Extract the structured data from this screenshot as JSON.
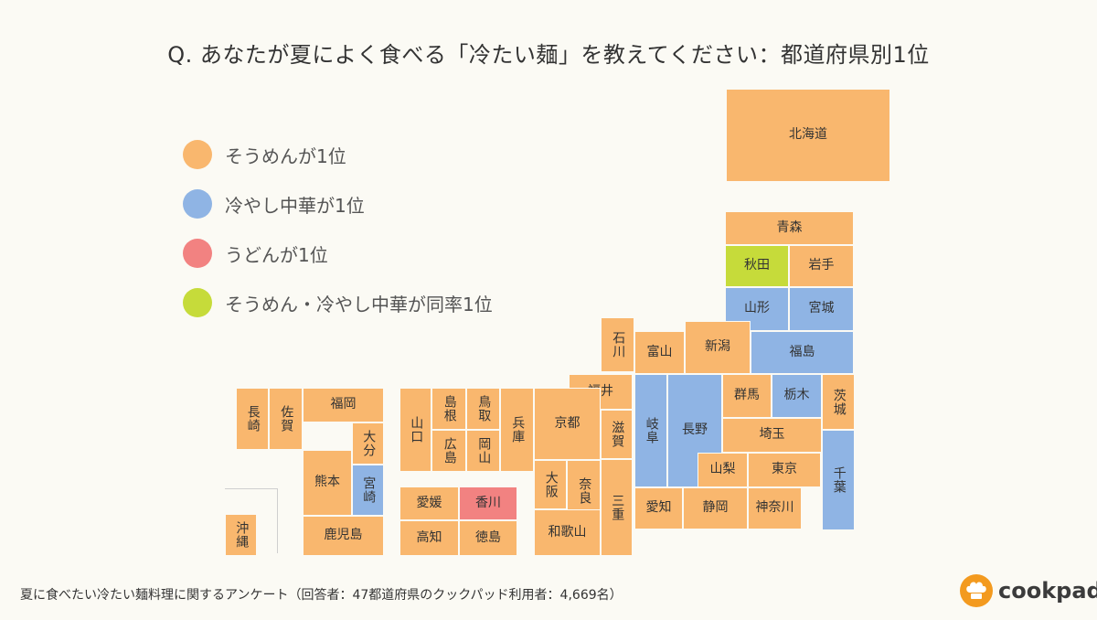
{
  "title": "Q. あなたが夏によく食べる「冷たい麺」を教えてください：都道府県別1位",
  "colors": {
    "somen": "#f9b76e",
    "hiyashi": "#8fb4e4",
    "udon": "#f28281",
    "tie": "#c6db3a"
  },
  "legend": [
    {
      "label": "そうめんが1位",
      "color": "#f9b76e"
    },
    {
      "label": "冷やし中華が1位",
      "color": "#8fb4e4"
    },
    {
      "label": "うどんが1位",
      "color": "#f28281"
    },
    {
      "label": "そうめん・冷やし中華が同率1位",
      "color": "#c6db3a"
    }
  ],
  "prefectures": [
    {
      "name": "北海道",
      "result": "somen"
    },
    {
      "name": "青森",
      "result": "somen"
    },
    {
      "name": "秋田",
      "result": "tie"
    },
    {
      "name": "岩手",
      "result": "somen"
    },
    {
      "name": "山形",
      "result": "hiyashi"
    },
    {
      "name": "宮城",
      "result": "hiyashi"
    },
    {
      "name": "福島",
      "result": "hiyashi"
    },
    {
      "name": "新潟",
      "result": "somen"
    },
    {
      "name": "富山",
      "result": "somen"
    },
    {
      "name": "石川",
      "result": "somen"
    },
    {
      "name": "福井",
      "result": "somen"
    },
    {
      "name": "岐阜",
      "result": "hiyashi"
    },
    {
      "name": "長野",
      "result": "hiyashi"
    },
    {
      "name": "群馬",
      "result": "somen"
    },
    {
      "name": "栃木",
      "result": "hiyashi"
    },
    {
      "name": "茨城",
      "result": "somen"
    },
    {
      "name": "埼玉",
      "result": "somen"
    },
    {
      "name": "千葉",
      "result": "hiyashi"
    },
    {
      "name": "山梨",
      "result": "somen"
    },
    {
      "name": "東京",
      "result": "somen"
    },
    {
      "name": "神奈川",
      "result": "somen"
    },
    {
      "name": "静岡",
      "result": "somen"
    },
    {
      "name": "愛知",
      "result": "somen"
    },
    {
      "name": "滋賀",
      "result": "somen"
    },
    {
      "name": "京都",
      "result": "somen"
    },
    {
      "name": "三重",
      "result": "somen"
    },
    {
      "name": "奈良",
      "result": "somen"
    },
    {
      "name": "大阪",
      "result": "somen"
    },
    {
      "name": "和歌山",
      "result": "somen"
    },
    {
      "name": "兵庫",
      "result": "somen"
    },
    {
      "name": "鳥取",
      "result": "somen"
    },
    {
      "name": "岡山",
      "result": "somen"
    },
    {
      "name": "島根",
      "result": "somen"
    },
    {
      "name": "広島",
      "result": "somen"
    },
    {
      "name": "山口",
      "result": "somen"
    },
    {
      "name": "香川",
      "result": "udon"
    },
    {
      "name": "愛媛",
      "result": "somen"
    },
    {
      "name": "徳島",
      "result": "somen"
    },
    {
      "name": "高知",
      "result": "somen"
    },
    {
      "name": "福岡",
      "result": "somen"
    },
    {
      "name": "佐賀",
      "result": "somen"
    },
    {
      "name": "長崎",
      "result": "somen"
    },
    {
      "name": "大分",
      "result": "somen"
    },
    {
      "name": "熊本",
      "result": "somen"
    },
    {
      "name": "宮崎",
      "result": "hiyashi"
    },
    {
      "name": "鹿児島",
      "result": "somen"
    },
    {
      "name": "沖縄",
      "result": "somen"
    }
  ],
  "footer": "夏に食べたい冷たい麺料理に関するアンケート（回答者：47都道府県のクックパッド利用者：4,669名）",
  "logo": {
    "text": "cookpad",
    "icon": "chef-hat-icon"
  }
}
